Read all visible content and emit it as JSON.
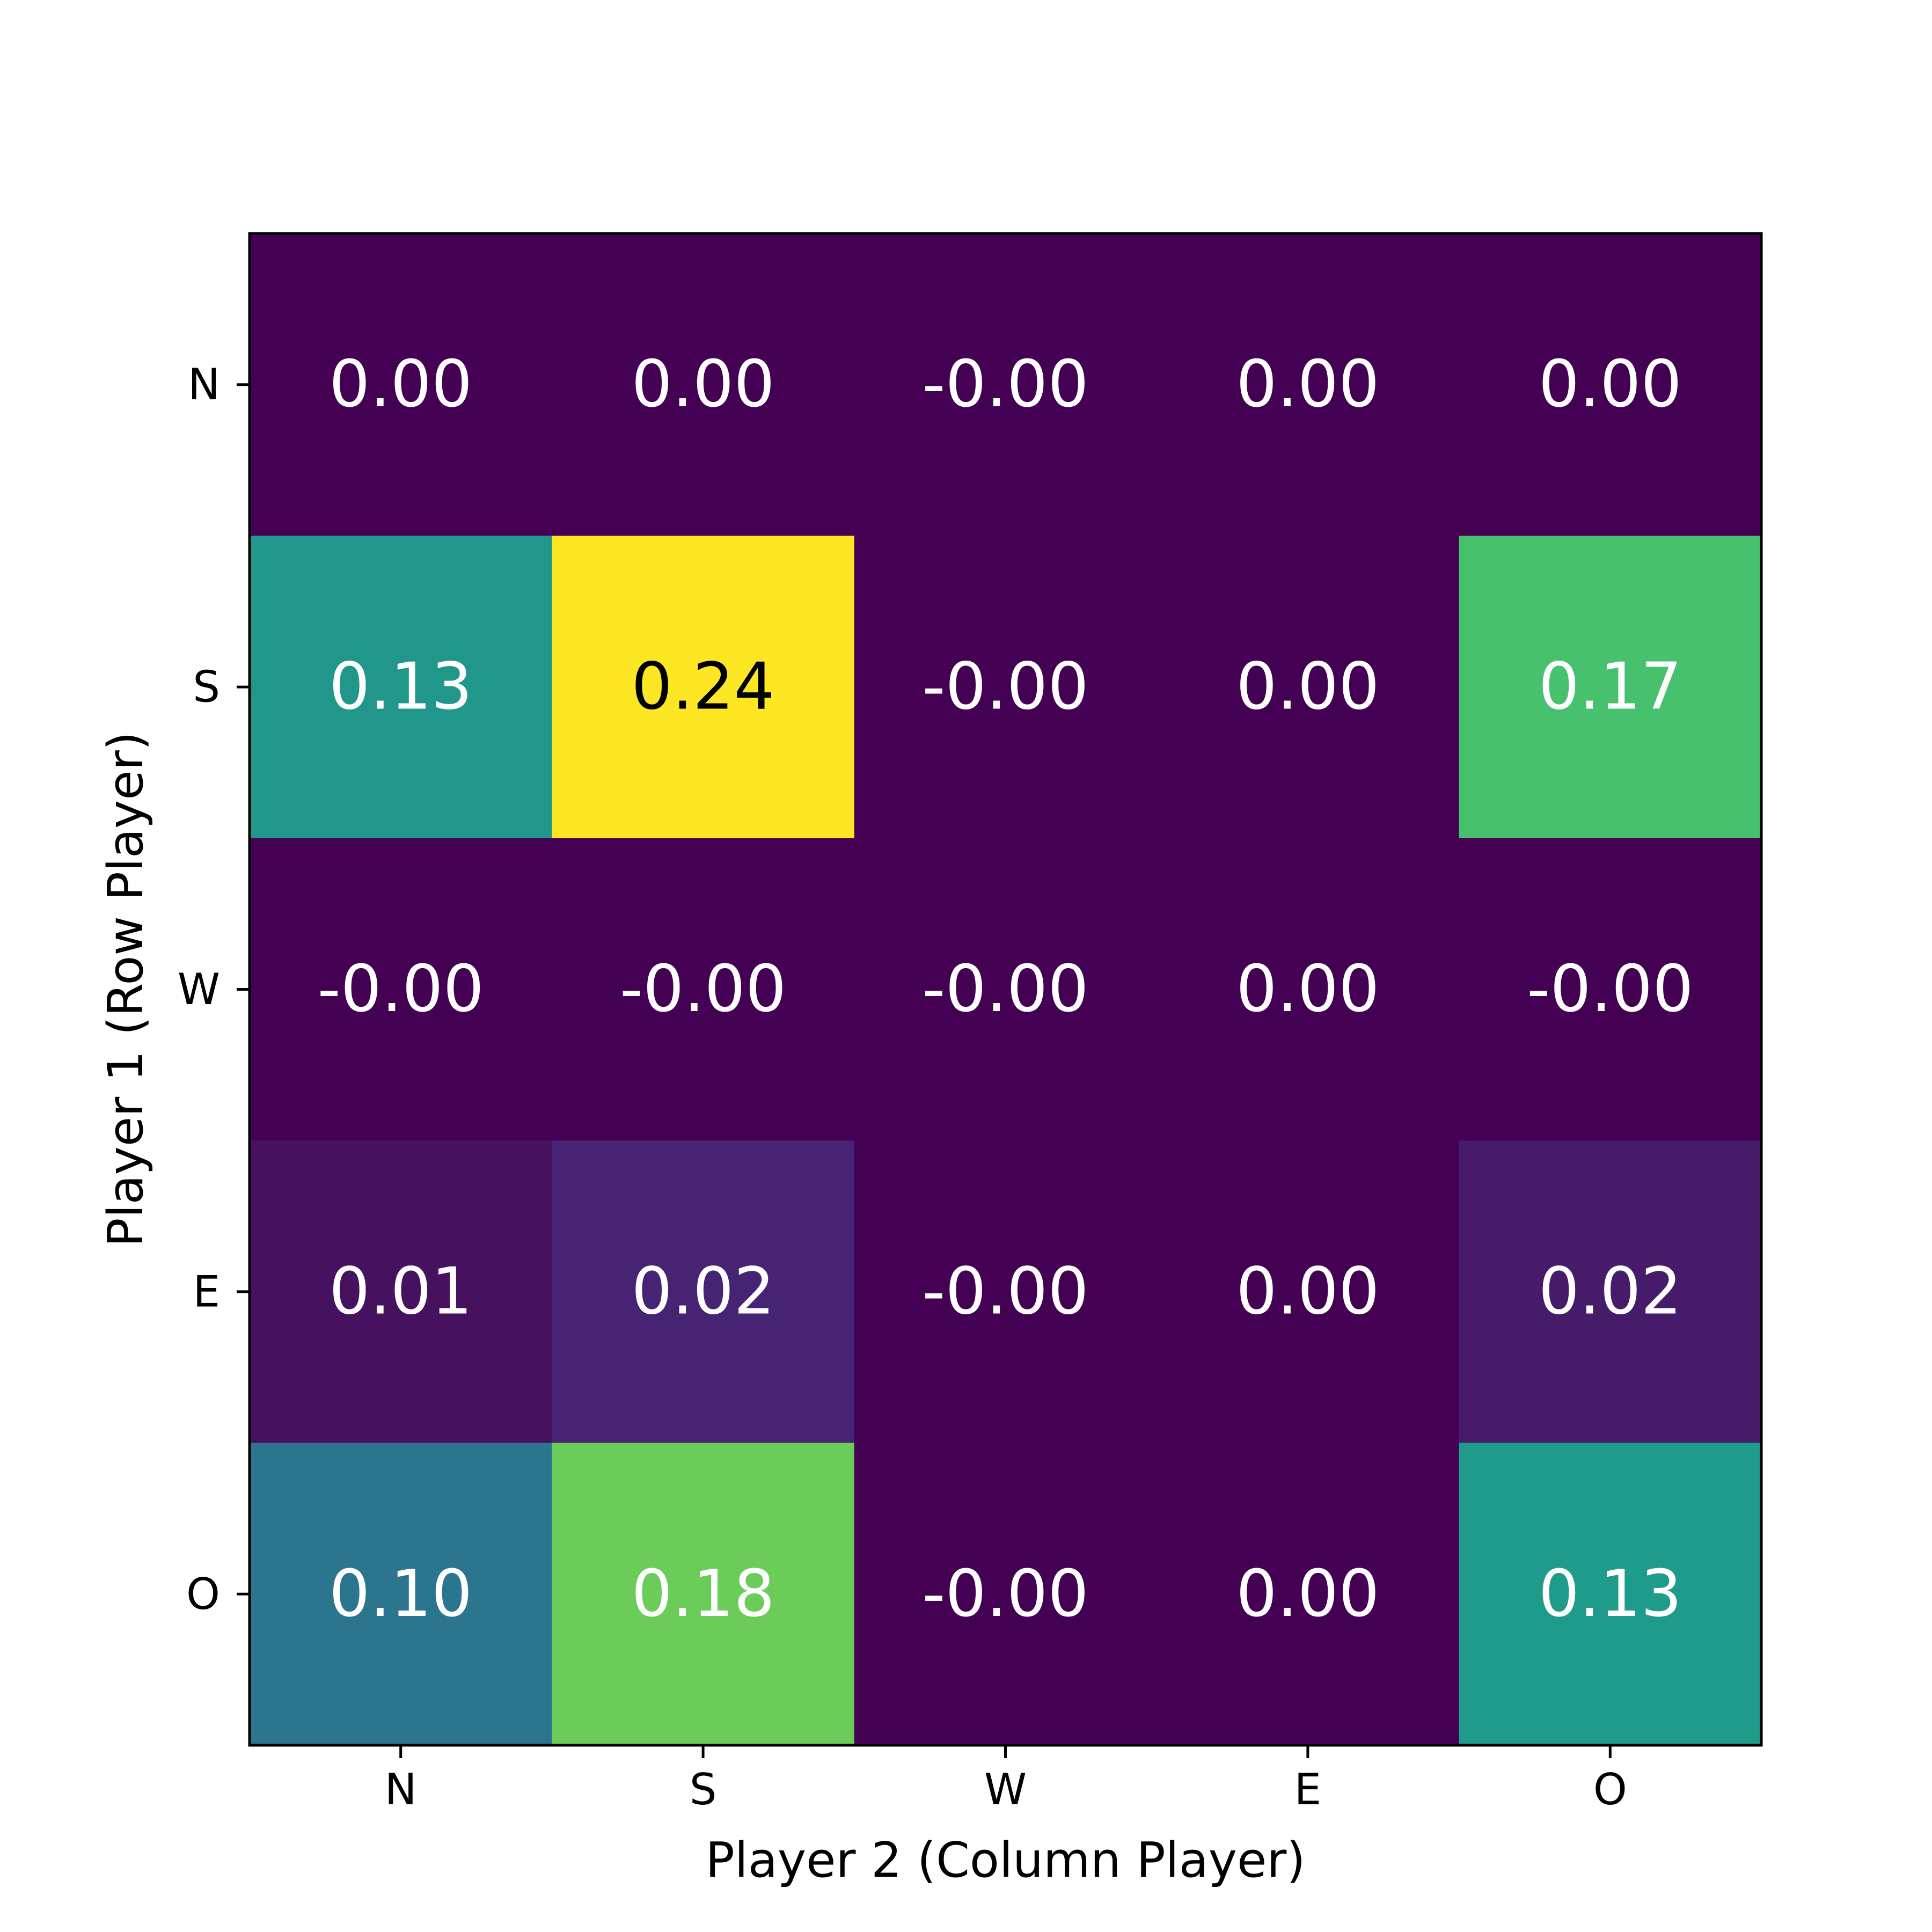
{
  "chart_data": {
    "type": "heatmap",
    "title": "",
    "xlabel": "Player 2 (Column Player)",
    "ylabel": "Player 1 (Row Player)",
    "x_categories": [
      "N",
      "S",
      "W",
      "E",
      "O"
    ],
    "y_categories": [
      "N",
      "S",
      "W",
      "E",
      "O"
    ],
    "values": [
      [
        0.0,
        0.0,
        -0.0,
        0.0,
        0.0
      ],
      [
        0.13,
        0.24,
        -0.0,
        0.0,
        0.17
      ],
      [
        -0.0,
        -0.0,
        -0.0,
        0.0,
        -0.0
      ],
      [
        0.01,
        0.02,
        -0.0,
        0.0,
        0.02
      ],
      [
        0.1,
        0.18,
        -0.0,
        0.0,
        0.13
      ]
    ],
    "cell_labels": [
      [
        "0.00",
        "0.00",
        "-0.00",
        "0.00",
        "0.00"
      ],
      [
        "0.13",
        "0.24",
        "-0.00",
        "0.00",
        "0.17"
      ],
      [
        "-0.00",
        "-0.00",
        "-0.00",
        "0.00",
        "-0.00"
      ],
      [
        "0.01",
        "0.02",
        "-0.00",
        "0.00",
        "0.02"
      ],
      [
        "0.10",
        "0.18",
        "-0.00",
        "0.00",
        "0.13"
      ]
    ],
    "cell_colors": [
      [
        "#440154",
        "#440154",
        "#440154",
        "#440154",
        "#440154"
      ],
      [
        "#21968b",
        "#fde725",
        "#440154",
        "#440154",
        "#48c16e"
      ],
      [
        "#440154",
        "#440154",
        "#440154",
        "#440154",
        "#440154"
      ],
      [
        "#46115f",
        "#472374",
        "#440154",
        "#440154",
        "#461b6a"
      ],
      [
        "#2b758e",
        "#6bcc5a",
        "#440154",
        "#440154",
        "#1e9b8a"
      ]
    ],
    "label_colors": [
      [
        "#ffffff",
        "#ffffff",
        "#ffffff",
        "#ffffff",
        "#ffffff"
      ],
      [
        "#ffffff",
        "#000000",
        "#ffffff",
        "#ffffff",
        "#ffffff"
      ],
      [
        "#ffffff",
        "#ffffff",
        "#ffffff",
        "#ffffff",
        "#ffffff"
      ],
      [
        "#ffffff",
        "#ffffff",
        "#ffffff",
        "#ffffff",
        "#ffffff"
      ],
      [
        "#ffffff",
        "#ffffff",
        "#ffffff",
        "#ffffff",
        "#ffffff"
      ]
    ],
    "colormap": "viridis",
    "vlim": [
      0.0,
      0.24
    ],
    "grid": false,
    "legend": false
  }
}
